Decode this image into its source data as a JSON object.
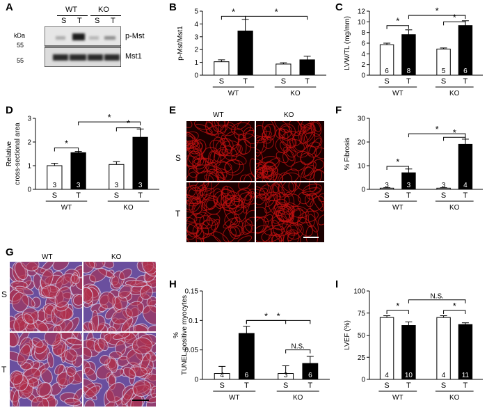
{
  "panel_labels": [
    "A",
    "B",
    "C",
    "D",
    "E",
    "F",
    "G",
    "H",
    "I"
  ],
  "blot": {
    "groups": [
      "WT",
      "KO"
    ],
    "lanes": [
      "S",
      "T",
      "S",
      "T"
    ],
    "kda_label": "kDa",
    "markers": [
      "55",
      "55"
    ],
    "bands": [
      "p-Mst",
      "Mst1"
    ]
  },
  "micrographs": {
    "E": {
      "cols": [
        "WT",
        "KO"
      ],
      "rows": [
        "S",
        "T"
      ],
      "colors": [
        "#1a0000",
        "#c01010"
      ]
    },
    "G": {
      "cols": [
        "WT",
        "KO"
      ],
      "rows": [
        "S",
        "T"
      ],
      "colors": [
        "#6a4f9e",
        "#b0304a"
      ]
    }
  },
  "chart_data": [
    {
      "id": "B",
      "type": "bar",
      "ylabel": "p-Mst/Mst1",
      "ylim": [
        0,
        5
      ],
      "yticks": [
        0,
        1,
        2,
        3,
        4,
        5
      ],
      "categories": [
        "S",
        "T",
        "S",
        "T"
      ],
      "groups": [
        "WT",
        "KO"
      ],
      "values": [
        1.05,
        3.45,
        0.87,
        1.2
      ],
      "errors": [
        0.15,
        0.9,
        0.1,
        0.28
      ],
      "n": [
        "",
        "",
        "",
        ""
      ],
      "sig": [
        "*",
        "*"
      ]
    },
    {
      "id": "C",
      "type": "bar",
      "ylabel": "LVW/TL (mg/mm)",
      "ylim": [
        0,
        12
      ],
      "yticks": [
        0,
        2,
        4,
        6,
        8,
        10,
        12
      ],
      "categories": [
        "S",
        "T",
        "S",
        "T"
      ],
      "groups": [
        "WT",
        "KO"
      ],
      "values": [
        5.7,
        7.6,
        4.9,
        9.3
      ],
      "errors": [
        0.3,
        0.9,
        0.2,
        0.9
      ],
      "n": [
        "6",
        "8",
        "5",
        "6"
      ],
      "sig": [
        "*",
        "*",
        "*"
      ]
    },
    {
      "id": "D",
      "type": "bar",
      "ylabel": "Relative cross-sectional area",
      "ylim": [
        0,
        3
      ],
      "yticks": [
        0,
        1,
        2,
        3
      ],
      "categories": [
        "S",
        "T",
        "S",
        "T"
      ],
      "groups": [
        "WT",
        "KO"
      ],
      "values": [
        1.0,
        1.55,
        1.05,
        2.2
      ],
      "errors": [
        0.1,
        0.05,
        0.12,
        0.35
      ],
      "n": [
        "3",
        "3",
        "3",
        "3"
      ],
      "sig": [
        "*",
        "*",
        "*"
      ]
    },
    {
      "id": "F",
      "type": "bar",
      "ylabel": "% Fibrosis",
      "ylim": [
        0,
        30
      ],
      "yticks": [
        0,
        10,
        20,
        30
      ],
      "categories": [
        "S",
        "T",
        "S",
        "T"
      ],
      "groups": [
        "WT",
        "KO"
      ],
      "values": [
        0.5,
        7.0,
        0.5,
        19.0
      ],
      "errors": [
        0.2,
        1.6,
        0.2,
        2.2
      ],
      "n": [
        "3",
        "3",
        "3",
        "4"
      ],
      "sig": [
        "*",
        "*",
        "*"
      ]
    },
    {
      "id": "H",
      "type": "bar",
      "ylabel": "% TUNEL-positive myocytes",
      "ylim": [
        0,
        0.15
      ],
      "yticks": [
        0,
        0.05,
        0.1,
        0.15
      ],
      "categories": [
        "S",
        "T",
        "S",
        "T"
      ],
      "groups": [
        "WT",
        "KO"
      ],
      "values": [
        0.01,
        0.078,
        0.01,
        0.027
      ],
      "errors": [
        0.012,
        0.012,
        0.013,
        0.012
      ],
      "n": [
        "4",
        "6",
        "3",
        "6"
      ],
      "sig": [
        "*",
        "*",
        "N.S."
      ]
    },
    {
      "id": "I",
      "type": "bar",
      "ylabel": "LVEF (%)",
      "ylim": [
        0,
        100
      ],
      "yticks": [
        0,
        25,
        50,
        75,
        100
      ],
      "categories": [
        "S",
        "T",
        "S",
        "T"
      ],
      "groups": [
        "WT",
        "KO"
      ],
      "values": [
        70,
        61,
        70,
        62
      ],
      "errors": [
        2,
        4,
        2,
        2
      ],
      "n": [
        "4",
        "10",
        "4",
        "11"
      ],
      "sig": [
        "*",
        "N.S.",
        "*"
      ]
    }
  ]
}
